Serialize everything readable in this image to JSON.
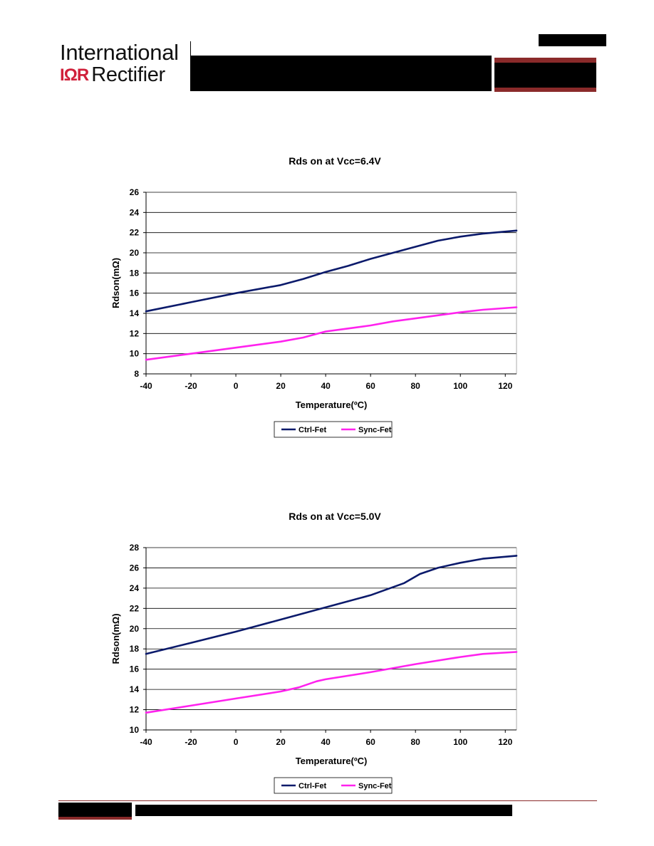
{
  "header": {
    "logo_line1": "International",
    "logo_mark": "IΩR",
    "logo_line2": "Rectifier"
  },
  "colors": {
    "ctrl_fet": "#0b1a6b",
    "sync_fet": "#ff22ee",
    "brand_red": "#8a2a2a"
  },
  "chart_data": [
    {
      "type": "line",
      "title": "Rds on at Vcc=6.4V",
      "xlabel": "Temperature(ºC)",
      "ylabel": "Rdson(mΩ)",
      "xlim": [
        -40,
        125
      ],
      "ylim": [
        8,
        26
      ],
      "xticks": [
        -40,
        -20,
        0,
        20,
        40,
        60,
        80,
        100,
        120
      ],
      "yticks": [
        8,
        10,
        12,
        14,
        16,
        18,
        20,
        22,
        24,
        26
      ],
      "grid": "horizontal",
      "legend": "bottom",
      "series": [
        {
          "name": "Ctrl-Fet",
          "x": [
            -40,
            -20,
            0,
            20,
            30,
            40,
            50,
            60,
            70,
            80,
            90,
            100,
            110,
            125
          ],
          "y": [
            14.2,
            15.1,
            16.0,
            16.8,
            17.4,
            18.1,
            18.7,
            19.4,
            20.0,
            20.6,
            21.2,
            21.6,
            21.9,
            22.2
          ]
        },
        {
          "name": "Sync-Fet",
          "x": [
            -40,
            -20,
            0,
            20,
            30,
            40,
            50,
            60,
            70,
            80,
            90,
            100,
            110,
            125
          ],
          "y": [
            9.4,
            10.0,
            10.6,
            11.2,
            11.6,
            12.2,
            12.5,
            12.8,
            13.2,
            13.5,
            13.8,
            14.1,
            14.35,
            14.6
          ]
        }
      ]
    },
    {
      "type": "line",
      "title": "Rds on at Vcc=5.0V",
      "xlabel": "Temperature(ºC)",
      "ylabel": "Rdson(mΩ)",
      "xlim": [
        -40,
        125
      ],
      "ylim": [
        10,
        28
      ],
      "xticks": [
        -40,
        -20,
        0,
        20,
        40,
        60,
        80,
        100,
        120
      ],
      "yticks": [
        10,
        12,
        14,
        16,
        18,
        20,
        22,
        24,
        26,
        28
      ],
      "grid": "horizontal",
      "legend": "bottom",
      "series": [
        {
          "name": "Ctrl-Fet",
          "x": [
            -40,
            -20,
            0,
            20,
            40,
            60,
            75,
            82,
            90,
            100,
            110,
            125
          ],
          "y": [
            17.5,
            18.6,
            19.7,
            20.9,
            22.1,
            23.3,
            24.5,
            25.4,
            26.0,
            26.5,
            26.9,
            27.2
          ]
        },
        {
          "name": "Sync-Fet",
          "x": [
            -40,
            -20,
            0,
            20,
            28,
            36,
            40,
            60,
            80,
            100,
            110,
            125
          ],
          "y": [
            11.7,
            12.4,
            13.1,
            13.8,
            14.2,
            14.8,
            15.0,
            15.7,
            16.5,
            17.2,
            17.5,
            17.7
          ]
        }
      ]
    }
  ]
}
